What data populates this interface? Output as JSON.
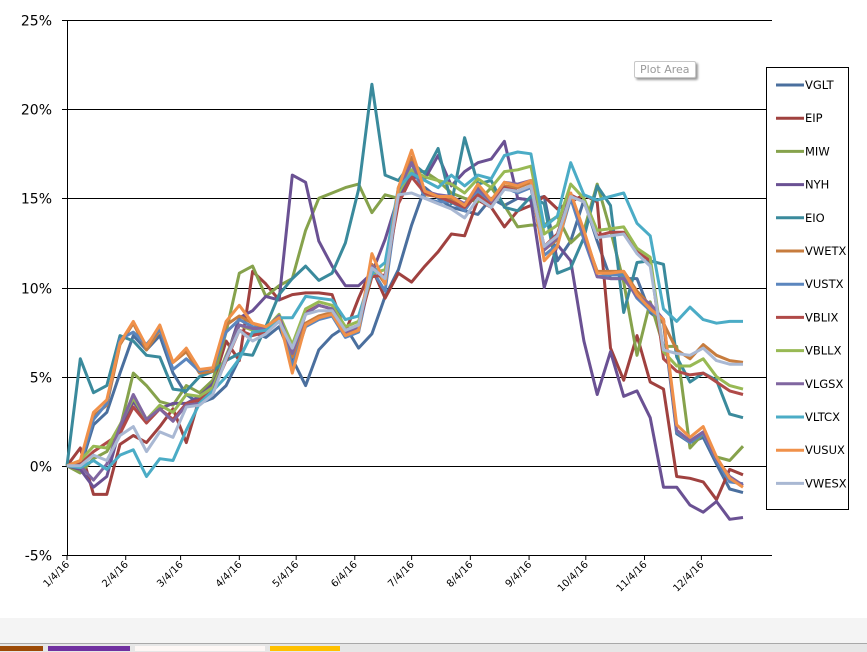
{
  "tooltip": {
    "text": "Plot Area"
  },
  "taskbar": {
    "swatches": [
      "#9c4a06",
      "#7030a0",
      "#fdf7f5",
      "#ffc000"
    ]
  },
  "chart_data": {
    "type": "line",
    "title": "",
    "xlabel": "",
    "ylabel": "",
    "ylim": [
      -5,
      25
    ],
    "yticks": [
      -5,
      0,
      5,
      10,
      15,
      20,
      25
    ],
    "ytick_labels": [
      "-5%",
      "0%",
      "5%",
      "10%",
      "15%",
      "20%",
      "25%"
    ],
    "xtick_labels": [
      "1/4/16",
      "2/4/16",
      "3/4/16",
      "4/4/16",
      "5/4/16",
      "6/4/16",
      "7/4/16",
      "8/4/16",
      "9/4/16",
      "10/4/16",
      "11/4/16",
      "12/4/16"
    ],
    "xtick_weeks": [
      0,
      4.43,
      8.57,
      13,
      17.29,
      21.71,
      26,
      30.43,
      34.86,
      39.14,
      43.57,
      47.86
    ],
    "x_weeks": 52,
    "grid": "horizontal",
    "legend_position": "right",
    "series": [
      {
        "name": "VGLT",
        "color": "#4a6f9e",
        "values": [
          0,
          -0.1,
          2.3,
          3.0,
          5.2,
          7.3,
          6.5,
          7.3,
          5.2,
          4.0,
          3.5,
          3.8,
          4.5,
          6.0,
          7.5,
          7.2,
          7.8,
          6.0,
          4.5,
          6.5,
          7.3,
          7.8,
          6.6,
          7.4,
          9.5,
          11.0,
          13.5,
          15.6,
          15.0,
          14.5,
          14.3,
          14.1,
          15.0,
          14.6,
          15.0,
          14.9,
          15.1,
          11.5,
          12.6,
          14.9,
          12.6,
          10.5,
          10.5,
          10.5,
          8.6,
          8.0,
          1.8,
          1.3,
          1.6,
          0.1,
          -1.3,
          -1.5
        ]
      },
      {
        "name": "EIP",
        "color": "#a0413f",
        "values": [
          0,
          1.0,
          -1.6,
          -1.6,
          1.2,
          1.7,
          1.3,
          2.2,
          3.2,
          1.3,
          3.8,
          4.6,
          7.0,
          5.9,
          10.9,
          10.2,
          9.3,
          9.6,
          9.7,
          9.7,
          9.6,
          7.5,
          9.4,
          11.1,
          9.4,
          10.8,
          10.3,
          11.2,
          12.0,
          13.0,
          12.9,
          14.9,
          14.5,
          13.4,
          14.3,
          14.6,
          15.1,
          14.4,
          14.8,
          15.2,
          14.8,
          6.6,
          4.8,
          7.3,
          4.7,
          4.3,
          -0.6,
          -0.7,
          -0.9,
          -1.9,
          -0.2,
          -0.5
        ]
      },
      {
        "name": "MIW",
        "color": "#86a24c",
        "values": [
          0,
          -0.4,
          0.4,
          0.8,
          2.1,
          5.2,
          4.5,
          3.6,
          3.4,
          4.5,
          4.1,
          4.8,
          7.5,
          10.8,
          11.2,
          9.5,
          10.1,
          10.5,
          13.2,
          15.0,
          15.3,
          15.6,
          15.8,
          14.2,
          15.2,
          15.0,
          16.5,
          16.5,
          16.0,
          15.3,
          15.0,
          14.8,
          15.6,
          14.6,
          13.4,
          13.5,
          13.5,
          14.0,
          12.5,
          13.2,
          15.8,
          13.2,
          10.3,
          6.2,
          9.2,
          6.7,
          6.7,
          1.0,
          1.8,
          0.5,
          0.3,
          1.1
        ]
      },
      {
        "name": "NYH",
        "color": "#6a5193",
        "values": [
          0,
          -0.2,
          -1.2,
          -0.6,
          2.1,
          3.6,
          2.6,
          3.2,
          3.5,
          3.5,
          3.9,
          4.6,
          6.0,
          8.3,
          8.7,
          9.5,
          9.3,
          16.3,
          15.9,
          12.6,
          11.2,
          10.1,
          10.1,
          10.8,
          12.7,
          15.1,
          16.2,
          16.1,
          17.4,
          15.7,
          16.5,
          17.0,
          17.2,
          18.2,
          15.0,
          14.9,
          10.0,
          12.4,
          11.5,
          7.0,
          4.0,
          6.4,
          3.9,
          4.2,
          2.7,
          -1.2,
          -1.2,
          -2.2,
          -2.6,
          -2.0,
          -3.0,
          -2.9
        ]
      },
      {
        "name": "EIO",
        "color": "#3a8a9c",
        "values": [
          0,
          6.0,
          4.1,
          4.5,
          7.3,
          7.0,
          6.2,
          6.1,
          4.3,
          4.2,
          5.0,
          5.3,
          5.9,
          6.3,
          6.2,
          7.8,
          9.6,
          10.5,
          11.2,
          10.4,
          10.8,
          12.5,
          15.5,
          21.4,
          16.3,
          16.0,
          17.0,
          16.4,
          17.8,
          14.7,
          18.4,
          15.8,
          16.0,
          14.5,
          14.3,
          15.1,
          14.7,
          10.8,
          11.1,
          12.8,
          15.7,
          14.6,
          8.6,
          11.4,
          11.5,
          11.3,
          6.1,
          4.7,
          5.2,
          4.8,
          2.9,
          2.7
        ]
      },
      {
        "name": "VWETX",
        "color": "#c77c3e",
        "values": [
          0,
          0.2,
          2.8,
          3.4,
          6.8,
          8.0,
          6.5,
          7.6,
          5.8,
          6.4,
          5.2,
          5.3,
          7.9,
          8.4,
          8.0,
          7.7,
          8.4,
          6.1,
          8.0,
          8.4,
          8.6,
          7.4,
          7.8,
          11.3,
          10.2,
          15.6,
          17.3,
          15.2,
          15.1,
          15.0,
          14.5,
          15.7,
          14.7,
          15.7,
          15.6,
          15.9,
          12.1,
          12.7,
          15.2,
          13.0,
          10.9,
          10.9,
          10.9,
          9.8,
          9.0,
          8.0,
          6.5,
          6.0,
          6.8,
          6.2,
          5.9,
          5.8
        ]
      },
      {
        "name": "VUSTX",
        "color": "#5b86be",
        "values": [
          0,
          0.1,
          2.6,
          3.5,
          7.1,
          7.5,
          6.8,
          7.7,
          5.4,
          6.0,
          5.3,
          5.5,
          7.5,
          8.2,
          7.8,
          7.6,
          8.2,
          5.6,
          7.8,
          8.2,
          8.4,
          7.2,
          7.5,
          11.0,
          9.8,
          15.2,
          17.0,
          15.0,
          14.8,
          14.8,
          14.3,
          15.4,
          14.5,
          15.6,
          15.3,
          15.6,
          11.8,
          12.4,
          15.0,
          12.7,
          10.6,
          10.7,
          10.7,
          9.4,
          8.7,
          8.2,
          1.9,
          1.3,
          1.8,
          0.3,
          -0.9,
          -1.0
        ]
      },
      {
        "name": "VBLIX",
        "color": "#b04a48",
        "values": [
          0,
          0.1,
          0.8,
          1.3,
          1.8,
          3.3,
          2.4,
          3.2,
          2.6,
          3.5,
          3.7,
          4.2,
          5.9,
          7.6,
          7.3,
          7.5,
          8.3,
          6.4,
          8.6,
          9.0,
          8.8,
          7.6,
          7.9,
          10.6,
          10.7,
          14.7,
          16.2,
          15.3,
          15.1,
          14.8,
          14.5,
          15.2,
          14.6,
          15.6,
          15.4,
          15.7,
          12.3,
          13.0,
          15.2,
          14.8,
          12.9,
          13.1,
          13.1,
          12.0,
          11.5,
          6.0,
          5.3,
          5.1,
          5.2,
          4.7,
          4.2,
          4.0
        ]
      },
      {
        "name": "VBLLX",
        "color": "#98b954",
        "values": [
          0,
          0.3,
          1.1,
          1.0,
          2.3,
          3.8,
          2.6,
          3.4,
          3.0,
          4.0,
          3.9,
          4.4,
          6.2,
          7.9,
          7.6,
          7.7,
          8.5,
          6.8,
          8.8,
          9.2,
          9.0,
          7.8,
          8.1,
          10.8,
          11.0,
          15.3,
          16.6,
          16.2,
          16.0,
          15.8,
          15.3,
          16.1,
          15.6,
          16.5,
          16.6,
          16.8,
          13.0,
          13.5,
          15.8,
          15.0,
          13.2,
          13.3,
          13.4,
          12.2,
          11.7,
          6.4,
          5.6,
          5.6,
          6.0,
          5.0,
          4.5,
          4.3
        ]
      },
      {
        "name": "VLGSX",
        "color": "#8066a0",
        "values": [
          0,
          0,
          -0.8,
          0.1,
          2.2,
          4.0,
          2.6,
          3.2,
          2.5,
          3.4,
          3.5,
          4.1,
          6.1,
          7.9,
          7.7,
          7.7,
          8.4,
          6.3,
          8.5,
          9.0,
          8.8,
          7.5,
          7.8,
          11.2,
          10.5,
          15.5,
          17.0,
          15.4,
          15.2,
          15.1,
          14.7,
          15.6,
          14.8,
          15.9,
          15.8,
          16.0,
          12.1,
          12.8,
          15.3,
          13.0,
          10.6,
          10.5,
          10.5,
          9.5,
          9.1,
          8.2,
          2.0,
          1.4,
          1.9,
          0.4,
          -0.6,
          -1.1
        ]
      },
      {
        "name": "VLTCX",
        "color": "#4bacc6",
        "values": [
          0,
          -0.1,
          0.3,
          -0.2,
          0.6,
          0.9,
          -0.6,
          0.4,
          0.3,
          2.0,
          3.5,
          4.2,
          5.0,
          6.0,
          7.5,
          7.6,
          8.3,
          8.3,
          9.5,
          9.4,
          9.3,
          8.2,
          8.4,
          10.8,
          11.4,
          15.6,
          16.4,
          16.0,
          15.6,
          16.3,
          15.7,
          16.3,
          16.1,
          17.4,
          17.6,
          17.5,
          13.4,
          14.0,
          17.0,
          15.2,
          14.9,
          15.1,
          15.3,
          13.6,
          12.9,
          8.8,
          8.1,
          8.9,
          8.2,
          8.0,
          8.1,
          8.1
        ]
      },
      {
        "name": "VUSUX",
        "color": "#f0914a",
        "values": [
          0,
          0.3,
          3.0,
          3.7,
          6.9,
          8.1,
          6.7,
          7.9,
          5.8,
          6.6,
          5.4,
          5.5,
          8.1,
          9.0,
          8.0,
          7.8,
          8.3,
          5.2,
          7.9,
          8.3,
          8.5,
          7.3,
          7.6,
          11.9,
          10.2,
          15.6,
          17.7,
          15.4,
          15.1,
          15.1,
          14.6,
          15.8,
          14.9,
          15.9,
          15.7,
          16.0,
          11.5,
          12.3,
          15.3,
          13.2,
          10.8,
          10.8,
          10.9,
          9.6,
          8.8,
          8.2,
          2.3,
          1.6,
          2.2,
          0.5,
          -0.7,
          -1.2
        ]
      },
      {
        "name": "VWESX",
        "color": "#a9b8d3",
        "values": [
          0,
          0,
          0.6,
          0.3,
          1.7,
          2.2,
          0.8,
          1.9,
          1.6,
          3.3,
          3.4,
          4.0,
          6.0,
          7.6,
          7.0,
          7.4,
          8.1,
          6.6,
          8.5,
          8.7,
          8.7,
          7.6,
          7.9,
          11.1,
          10.5,
          15.2,
          15.3,
          15.0,
          14.7,
          14.4,
          13.9,
          15.0,
          14.5,
          15.5,
          15.4,
          15.7,
          12.3,
          12.9,
          15.1,
          14.8,
          12.8,
          12.9,
          13.0,
          11.9,
          11.2,
          6.5,
          6.3,
          6.2,
          6.6,
          5.9,
          5.7,
          5.7
        ]
      }
    ]
  }
}
